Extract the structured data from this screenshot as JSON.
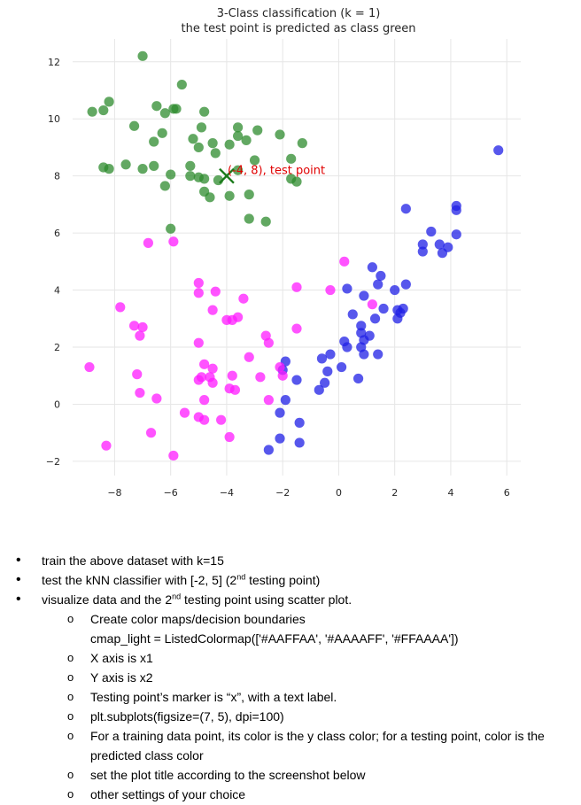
{
  "chart_data": {
    "type": "scatter",
    "title": "3-Class classification (k = 1)",
    "subtitle": "the test point is predicted as class green",
    "xlabel": "",
    "ylabel": "",
    "xlim": [
      -9.5,
      6.5
    ],
    "ylim": [
      -2.5,
      12.8
    ],
    "grid": true,
    "xticks": [
      -8,
      -6,
      -4,
      -2,
      0,
      2,
      4,
      6
    ],
    "yticks": [
      -2,
      0,
      2,
      4,
      6,
      8,
      10,
      12
    ],
    "series": [
      {
        "color": "#2e8b2e",
        "points": [
          [
            -7,
            12.2
          ],
          [
            -8.2,
            10.6
          ],
          [
            -8.4,
            10.3
          ],
          [
            -8.8,
            10.25
          ],
          [
            -5.6,
            11.2
          ],
          [
            -6.5,
            10.45
          ],
          [
            -6.2,
            10.2
          ],
          [
            -5.9,
            10.35
          ],
          [
            -5.8,
            10.35
          ],
          [
            -4.8,
            10.25
          ],
          [
            -7.3,
            9.75
          ],
          [
            -6.3,
            9.5
          ],
          [
            -6.6,
            9.2
          ],
          [
            -5.2,
            9.3
          ],
          [
            -4.9,
            9.7
          ],
          [
            -4.5,
            9.15
          ],
          [
            -5,
            9.0
          ],
          [
            -4.4,
            8.8
          ],
          [
            -3.9,
            9.1
          ],
          [
            -3.6,
            9.7
          ],
          [
            -3.6,
            9.4
          ],
          [
            -3.3,
            9.25
          ],
          [
            -2.9,
            9.6
          ],
          [
            -2.1,
            9.45
          ],
          [
            -1.3,
            9.15
          ],
          [
            -1.7,
            8.6
          ],
          [
            -3,
            8.55
          ],
          [
            -8.4,
            8.3
          ],
          [
            -8.2,
            8.25
          ],
          [
            -7.6,
            8.4
          ],
          [
            -7,
            8.25
          ],
          [
            -6.6,
            8.35
          ],
          [
            -5.3,
            8.35
          ],
          [
            -5.3,
            8.0
          ],
          [
            -6,
            8.05
          ],
          [
            -5,
            7.95
          ],
          [
            -4.8,
            7.9
          ],
          [
            -4.3,
            7.85
          ],
          [
            -1.7,
            7.9
          ],
          [
            -1.5,
            7.8
          ],
          [
            -3.6,
            8.2
          ],
          [
            -6.2,
            7.65
          ],
          [
            -4.8,
            7.45
          ],
          [
            -4.6,
            7.25
          ],
          [
            -3.9,
            7.3
          ],
          [
            -3.2,
            7.35
          ],
          [
            -3.2,
            6.5
          ],
          [
            -2.6,
            6.4
          ],
          [
            -6,
            6.15
          ]
        ]
      },
      {
        "color": "#1f1fe6",
        "points": [
          [
            5.7,
            8.9
          ],
          [
            4.2,
            6.95
          ],
          [
            4.2,
            6.8
          ],
          [
            2.4,
            6.85
          ],
          [
            4.2,
            5.95
          ],
          [
            3.3,
            6.05
          ],
          [
            3,
            5.6
          ],
          [
            3,
            5.35
          ],
          [
            3.6,
            5.6
          ],
          [
            3.9,
            5.5
          ],
          [
            3.7,
            5.3
          ],
          [
            1.2,
            4.8
          ],
          [
            1.5,
            4.5
          ],
          [
            1.4,
            4.2
          ],
          [
            2,
            4
          ],
          [
            2.4,
            4.2
          ],
          [
            0.3,
            4.05
          ],
          [
            0.9,
            3.8
          ],
          [
            2.1,
            3.3
          ],
          [
            1.6,
            3.35
          ],
          [
            2.3,
            3.35
          ],
          [
            2.2,
            3.2
          ],
          [
            2.1,
            3.0
          ],
          [
            1.3,
            3.0
          ],
          [
            0.5,
            3.15
          ],
          [
            0.8,
            2.75
          ],
          [
            0.8,
            2.5
          ],
          [
            1.1,
            2.4
          ],
          [
            0.9,
            2.25
          ],
          [
            0.2,
            2.2
          ],
          [
            0.3,
            2.0
          ],
          [
            0.8,
            2.0
          ],
          [
            0.9,
            1.75
          ],
          [
            1.4,
            1.75
          ],
          [
            -0.3,
            1.75
          ],
          [
            -0.6,
            1.6
          ],
          [
            -1.9,
            1.5
          ],
          [
            0.1,
            1.3
          ],
          [
            -0.4,
            1.15
          ],
          [
            -2,
            1.2
          ],
          [
            0.7,
            0.9
          ],
          [
            -0.5,
            0.75
          ],
          [
            -1.5,
            0.85
          ],
          [
            -0.7,
            0.5
          ],
          [
            -1.9,
            0.15
          ],
          [
            -2.1,
            -0.3
          ],
          [
            -1.4,
            -0.65
          ],
          [
            -2.1,
            -1.2
          ],
          [
            -1.4,
            -1.35
          ],
          [
            -2.5,
            -1.6
          ]
        ]
      },
      {
        "color": "#ff1aff",
        "points": [
          [
            0.2,
            5
          ],
          [
            -0.3,
            4
          ],
          [
            -1.5,
            4.1
          ],
          [
            1.2,
            3.5
          ],
          [
            -5,
            4.25
          ],
          [
            -5,
            3.9
          ],
          [
            -4.4,
            3.95
          ],
          [
            -3.4,
            3.7
          ],
          [
            -7.8,
            3.4
          ],
          [
            -4.5,
            3.3
          ],
          [
            -3.6,
            3.05
          ],
          [
            -3.8,
            2.95
          ],
          [
            -4,
            2.95
          ],
          [
            -7.3,
            2.75
          ],
          [
            -7,
            2.7
          ],
          [
            -7.1,
            2.4
          ],
          [
            -2.6,
            2.4
          ],
          [
            -1.5,
            2.65
          ],
          [
            -2.5,
            2.15
          ],
          [
            -5,
            2.15
          ],
          [
            -3.2,
            1.65
          ],
          [
            -8.9,
            1.3
          ],
          [
            -4.8,
            1.4
          ],
          [
            -4.5,
            1.25
          ],
          [
            -2.1,
            1.3
          ],
          [
            -2,
            1.0
          ],
          [
            -3.8,
            1.0
          ],
          [
            -7.2,
            1.05
          ],
          [
            -4.9,
            0.95
          ],
          [
            -4.6,
            0.95
          ],
          [
            -2.8,
            0.95
          ],
          [
            -5,
            0.85
          ],
          [
            -4.5,
            0.75
          ],
          [
            -3.9,
            0.55
          ],
          [
            -3.7,
            0.5
          ],
          [
            -7.1,
            0.4
          ],
          [
            -6.5,
            0.2
          ],
          [
            -4.8,
            0.15
          ],
          [
            -2.5,
            0.15
          ],
          [
            -5.5,
            -0.3
          ],
          [
            -5,
            -0.45
          ],
          [
            -4.8,
            -0.55
          ],
          [
            -4.2,
            -0.55
          ],
          [
            -6.7,
            -1.0
          ],
          [
            -8.3,
            -1.45
          ],
          [
            -3.9,
            -1.15
          ],
          [
            -5.9,
            -1.8
          ],
          [
            -6.8,
            5.65
          ],
          [
            -5.9,
            5.7
          ]
        ]
      }
    ],
    "test_point": {
      "x": -4,
      "y": 8,
      "marker": "x",
      "color": "#1a7a1a",
      "label": "(-4, 8), test point",
      "label_color": "#e00000"
    }
  },
  "instructions": {
    "bullets": [
      "train the above dataset with k=15",
      {
        "before": "test the kNN classifier with [-2, 5] (2",
        "sup": "nd",
        "after": " testing point)"
      },
      "visualize data and the 2",
      "nd",
      " testing point using scatter plot."
    ],
    "b1": "train the above dataset with k=15",
    "b2_before": "test the kNN classifier with [-2, 5] (2",
    "b2_sup": "nd",
    "b2_after": " testing point)",
    "b3_before": "visualize data and the 2",
    "b3_sup": "nd",
    "b3_after": " testing point using scatter plot.",
    "sub": [
      "Create color maps/decision boundaries",
      "cmap_light = ListedColormap(['#AAFFAA', '#AAAAFF', '#FFAAAA'])",
      "X axis is x1",
      "Y axis is x2",
      "Testing point’s marker is “x”, with a text label.",
      "plt.subplots(figsize=(7, 5), dpi=100)",
      "For a training data point, its color is the y class color; for a testing point, color is the predicted class color",
      "set the plot title according to the screenshot below",
      "other settings of your choice"
    ],
    "bullet_glyph": "•",
    "sub_glyph": "o"
  }
}
